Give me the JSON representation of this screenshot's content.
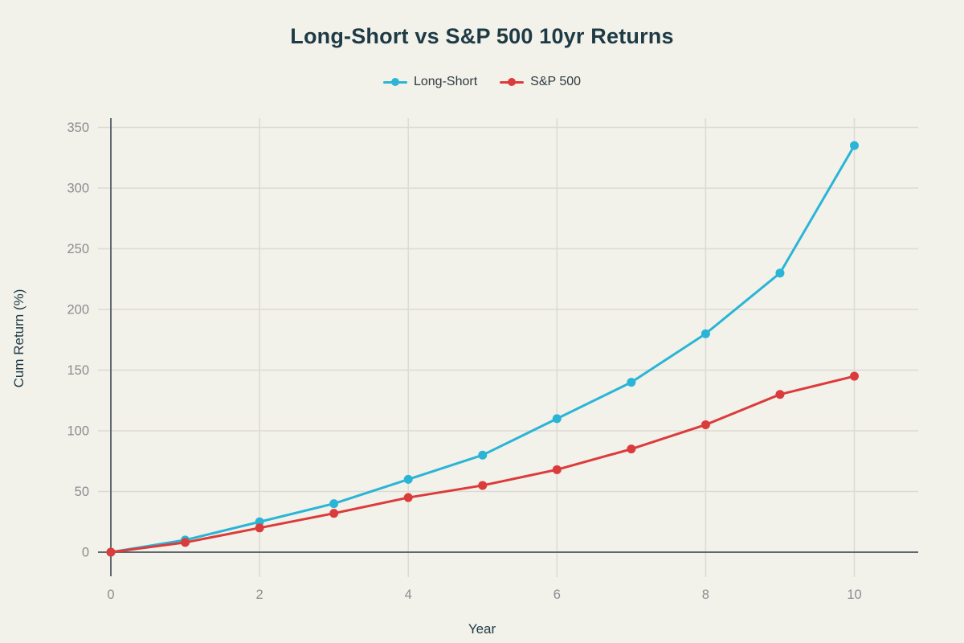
{
  "theme": {
    "background": "#f2f1ea",
    "title_color": "#1e3a45",
    "axis_label_color": "#1e3a45",
    "legend_text_color": "#2e3a40",
    "axis_line_color": "#5f686e",
    "grid_color": "#dcdbd3",
    "tick_label_color": "#8b8e90"
  },
  "chart_data": {
    "type": "line",
    "title": "Long-Short vs S&P 500 10yr Returns",
    "xlabel": "Year",
    "ylabel": "Cum Return (%)",
    "x": [
      0,
      1,
      2,
      3,
      4,
      5,
      6,
      7,
      8,
      9,
      10
    ],
    "xticks": [
      0,
      2,
      4,
      6,
      8,
      10
    ],
    "yticks": [
      0,
      50,
      100,
      150,
      200,
      250,
      300,
      350
    ],
    "xlim": [
      0,
      10.85
    ],
    "ylim": [
      0,
      358
    ],
    "grid": true,
    "legend_position": "top-center",
    "marker": "circle",
    "series": [
      {
        "name": "Long-Short",
        "color": "#2ab5d6",
        "values": [
          0,
          10,
          25,
          40,
          60,
          80,
          110,
          140,
          180,
          230,
          335
        ]
      },
      {
        "name": "S&P 500",
        "color": "#dc3b3b",
        "values": [
          0,
          8,
          20,
          32,
          45,
          55,
          68,
          85,
          105,
          130,
          145
        ]
      }
    ]
  }
}
